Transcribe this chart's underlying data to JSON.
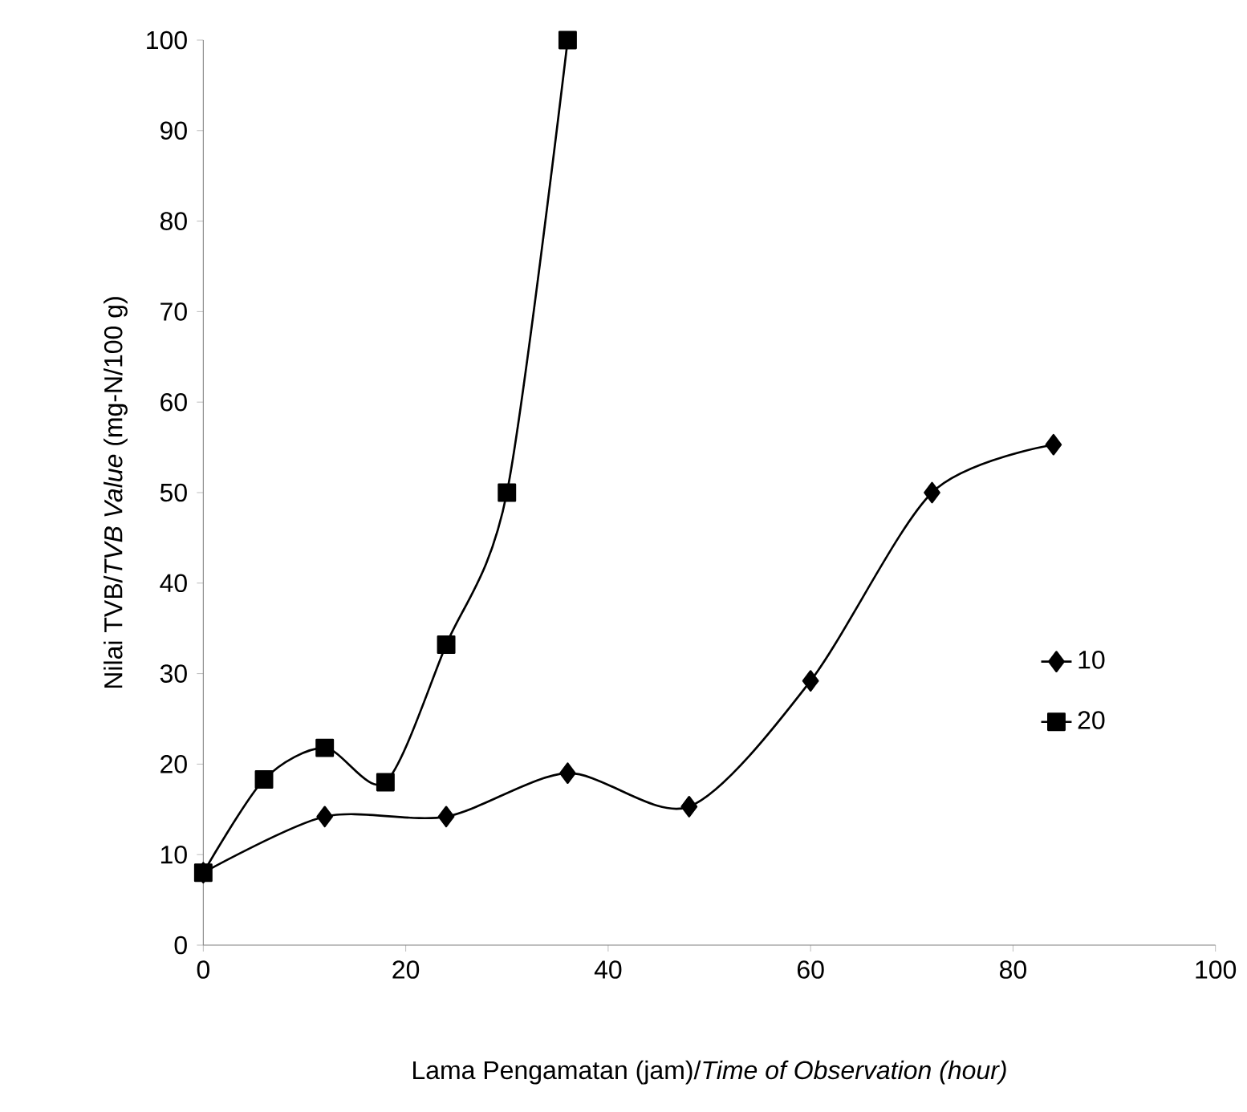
{
  "chart_data": {
    "type": "line",
    "xlabel": "Lama Pengamatan (jam)/*Time of Observation (hour)*",
    "ylabel": "Nilai TVB/*TVB Value* (mg-N/100 g)",
    "xlim": [
      0,
      100
    ],
    "ylim": [
      0,
      100
    ],
    "xticks": [
      0,
      20,
      40,
      60,
      80,
      100
    ],
    "yticks": [
      0,
      10,
      20,
      30,
      40,
      50,
      60,
      70,
      80,
      90,
      100
    ],
    "legend": "right",
    "grid": false,
    "series": [
      {
        "name": "10",
        "color": "#000000",
        "marker": "diamond",
        "x": [
          0,
          12,
          24,
          36,
          48,
          60,
          72,
          84
        ],
        "values": [
          8,
          14.2,
          14.2,
          19,
          15.3,
          29.2,
          50,
          55.3
        ]
      },
      {
        "name": "20",
        "color": "#000000",
        "marker": "square",
        "x": [
          0,
          6,
          12,
          18,
          24,
          30,
          36
        ],
        "values": [
          8,
          18.3,
          21.8,
          18,
          33.2,
          50,
          100
        ]
      }
    ]
  }
}
